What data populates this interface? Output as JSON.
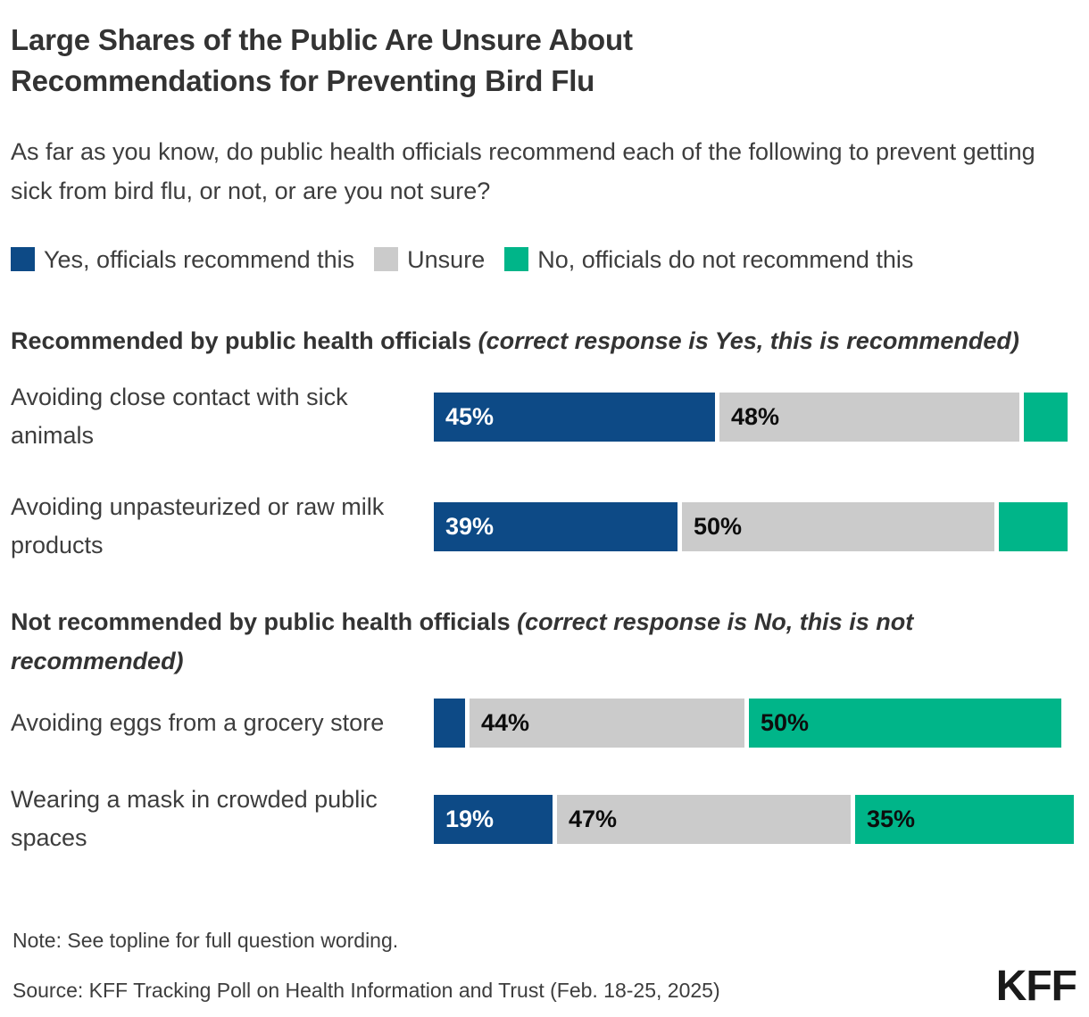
{
  "title": "Large Shares of the Public Are Unsure About Recommendations for Preventing Bird Flu",
  "subtitle": "As far as you know, do public health officials recommend each of the following to prevent getting sick from bird flu, or not, or are you not sure?",
  "legend": [
    {
      "label": "Yes, officials recommend this",
      "color": "#0d4a86"
    },
    {
      "label": "Unsure",
      "color": "#cbcbcb"
    },
    {
      "label": "No, officials do not recommend this",
      "color": "#00b589"
    }
  ],
  "colors": {
    "yes": "#0d4a86",
    "unsure": "#cbcbcb",
    "no": "#00b589"
  },
  "chart_data": {
    "type": "bar",
    "orientation": "horizontal",
    "stacked": true,
    "unit": "percent",
    "xlim": [
      0,
      100
    ],
    "series_names": [
      "Yes, officials recommend this",
      "Unsure",
      "No, officials do not recommend this"
    ],
    "sections": [
      {
        "heading": "Recommended by public health officials ",
        "heading_note": "(correct response is Yes, this is recommended)",
        "rows": [
          {
            "label": "Avoiding close contact with sick animals",
            "values": [
              45,
              48,
              7
            ],
            "value_labels": [
              "45%",
              "48%",
              ""
            ]
          },
          {
            "label": "Avoiding unpasteurized or raw milk products",
            "values": [
              39,
              50,
              11
            ],
            "value_labels": [
              "39%",
              "50%",
              ""
            ]
          }
        ]
      },
      {
        "heading": "Not recommended by public health officials ",
        "heading_note": "(correct response is No, this is not recommended)",
        "rows": [
          {
            "label": "Avoiding eggs from a grocery store",
            "values": [
              5,
              44,
              50
            ],
            "value_labels": [
              "",
              "44%",
              "50%"
            ]
          },
          {
            "label": "Wearing a mask in crowded public spaces",
            "values": [
              19,
              47,
              35
            ],
            "value_labels": [
              "19%",
              "47%",
              "35%"
            ]
          }
        ]
      }
    ]
  },
  "note": "Note: See topline for full question wording.",
  "source": "Source: KFF Tracking Poll on Health Information and Trust (Feb. 18-25, 2025)",
  "logo_text": "KFF"
}
